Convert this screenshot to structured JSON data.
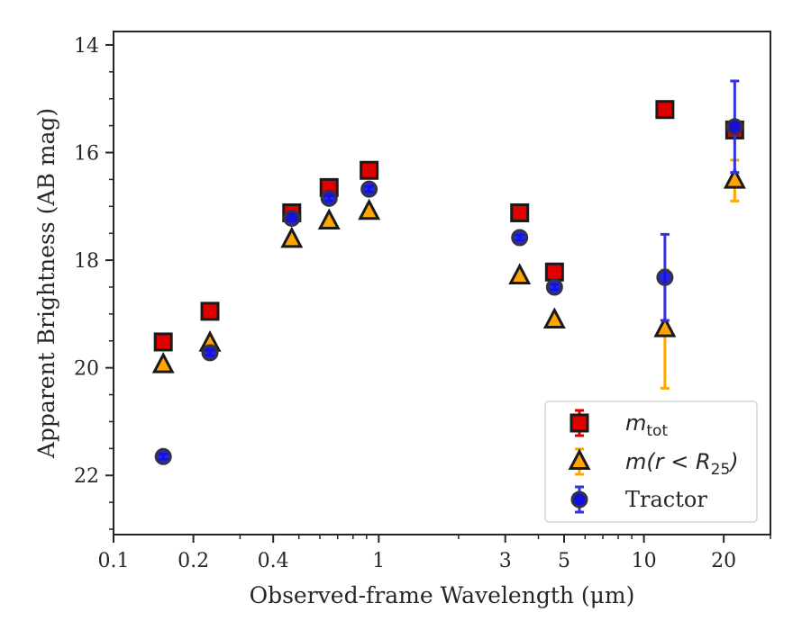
{
  "chart_data": {
    "type": "scatter",
    "title": "",
    "xlabel": "Observed-frame Wavelength (μm)",
    "ylabel": "Apparent Brightness (AB mag)",
    "xscale": "log",
    "xlim": [
      0.1,
      30
    ],
    "ylim": [
      23.1,
      13.75
    ],
    "y_inverted": true,
    "xticks": [
      0.1,
      0.2,
      0.4,
      1,
      3,
      5,
      10,
      20
    ],
    "xtick_labels": [
      "0.1",
      "0.2",
      "0.4",
      "1",
      "3",
      "5",
      "10",
      "20"
    ],
    "yticks": [
      14,
      16,
      18,
      20,
      22
    ],
    "ytick_labels": [
      "14",
      "16",
      "18",
      "20",
      "22"
    ],
    "grid": false,
    "legend_position": "bottom-right",
    "legend": [
      {
        "base": "m",
        "sub": "tot",
        "text": ""
      },
      {
        "base": "m(r < R",
        "sub": "25",
        "text": ")"
      },
      {
        "base": "",
        "sub": "",
        "text": "Tractor"
      }
    ],
    "series": [
      {
        "name": "m_tot",
        "marker": "square",
        "color": "#e00000",
        "edge": "#1a1a1a",
        "errcolor": "#e00000",
        "points": [
          {
            "x": 0.154,
            "y": 19.52,
            "err": 0.05
          },
          {
            "x": 0.231,
            "y": 18.95,
            "err": 0.05
          },
          {
            "x": 0.47,
            "y": 17.12,
            "err": 0.05
          },
          {
            "x": 0.65,
            "y": 16.65,
            "err": 0.05
          },
          {
            "x": 0.92,
            "y": 16.33,
            "err": 0.05
          },
          {
            "x": 3.4,
            "y": 17.12,
            "err": 0.05
          },
          {
            "x": 4.6,
            "y": 18.22,
            "err": 0.05
          },
          {
            "x": 12.0,
            "y": 15.2,
            "err": 0.05
          },
          {
            "x": 22.0,
            "y": 15.58,
            "err": 0.05
          }
        ]
      },
      {
        "name": "m(r < R_25)",
        "marker": "triangle",
        "color": "#ffa500",
        "edge": "#1a1a1a",
        "errcolor": "#ffa500",
        "points": [
          {
            "x": 0.154,
            "y": 19.95,
            "err": 0.05
          },
          {
            "x": 0.231,
            "y": 19.55,
            "err": 0.05
          },
          {
            "x": 0.47,
            "y": 17.62,
            "err": 0.05
          },
          {
            "x": 0.65,
            "y": 17.28,
            "err": 0.05
          },
          {
            "x": 0.92,
            "y": 17.1,
            "err": 0.05
          },
          {
            "x": 3.4,
            "y": 18.3,
            "err": 0.05
          },
          {
            "x": 4.6,
            "y": 19.12,
            "err": 0.05
          },
          {
            "x": 12.0,
            "y": 19.28,
            "err": 1.1
          },
          {
            "x": 22.0,
            "y": 16.52,
            "err": 0.38
          }
        ]
      },
      {
        "name": "Tractor",
        "marker": "circle",
        "color": "#1010e0",
        "edge": "#333344",
        "errcolor": "#3333dd",
        "points": [
          {
            "x": 0.154,
            "y": 21.65,
            "err": 0.05
          },
          {
            "x": 0.231,
            "y": 19.72,
            "err": 0.05
          },
          {
            "x": 0.47,
            "y": 17.22,
            "err": 0.05
          },
          {
            "x": 0.65,
            "y": 16.85,
            "err": 0.05
          },
          {
            "x": 0.92,
            "y": 16.68,
            "err": 0.05
          },
          {
            "x": 3.4,
            "y": 17.58,
            "err": 0.05
          },
          {
            "x": 4.6,
            "y": 18.5,
            "err": 0.05
          },
          {
            "x": 12.0,
            "y": 18.32,
            "err": 0.8
          },
          {
            "x": 22.0,
            "y": 15.52,
            "err": 0.85
          }
        ]
      }
    ]
  }
}
